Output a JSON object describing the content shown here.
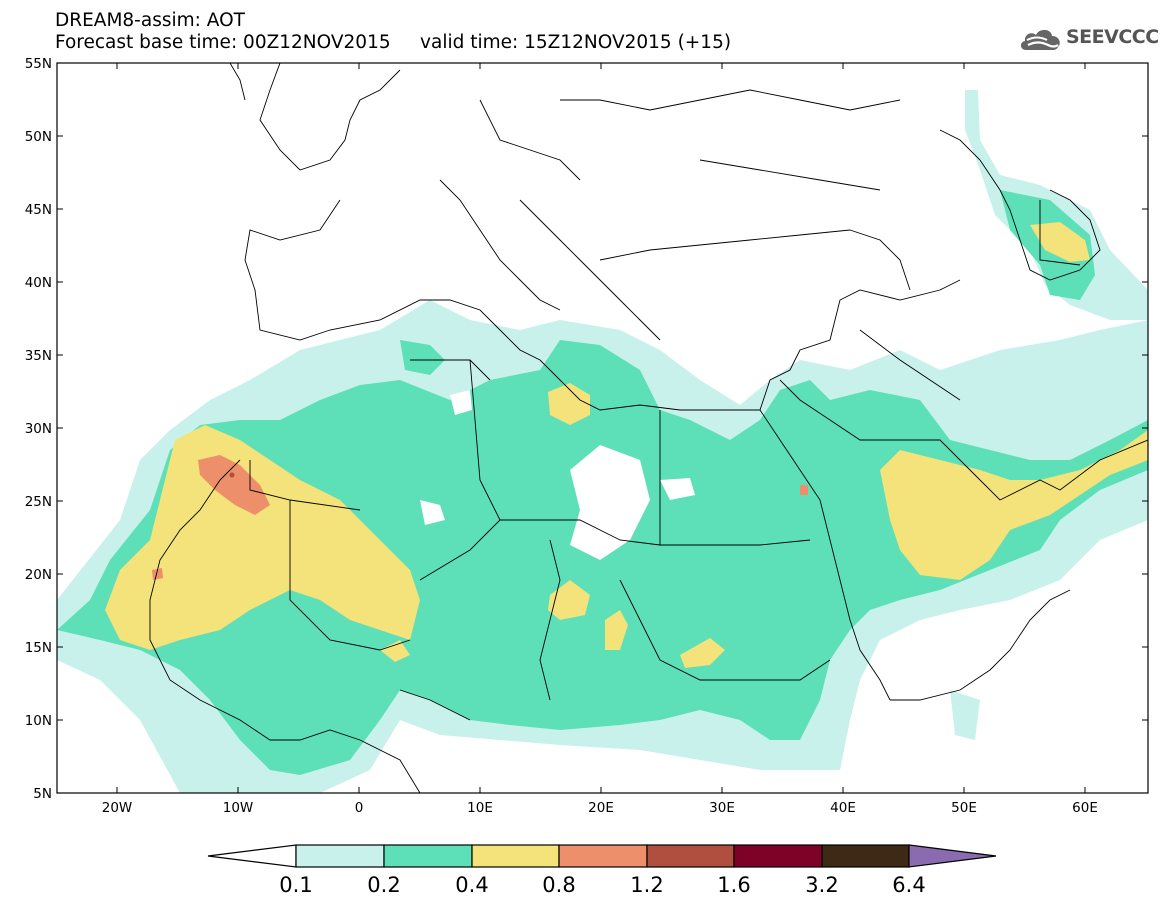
{
  "header": {
    "title": "DREAM8-assim: AOT",
    "base_time_label": "Forecast base time: 00Z12NOV2015",
    "valid_time_label": "valid time: 15Z12NOV2015 (+15)"
  },
  "logo": {
    "text": "SEEVCCC",
    "icon": "cloud-icon"
  },
  "axes": {
    "lat_labels": [
      "55N",
      "50N",
      "45N",
      "40N",
      "35N",
      "30N",
      "25N",
      "20N",
      "15N",
      "10N",
      "5N"
    ],
    "lon_labels": [
      "20W",
      "10W",
      "0",
      "10E",
      "20E",
      "30E",
      "40E",
      "50E",
      "60E"
    ]
  },
  "colorbar": {
    "labels": [
      "0.1",
      "0.2",
      "0.4",
      "0.8",
      "1.2",
      "1.6",
      "3.2",
      "6.4"
    ],
    "colors": [
      "#ffffff",
      "#c9f1ec",
      "#5ddfb7",
      "#f4e27a",
      "#ec8f6a",
      "#b04e40",
      "#7e0227",
      "#3d2916",
      "#8b6bb0"
    ]
  }
}
